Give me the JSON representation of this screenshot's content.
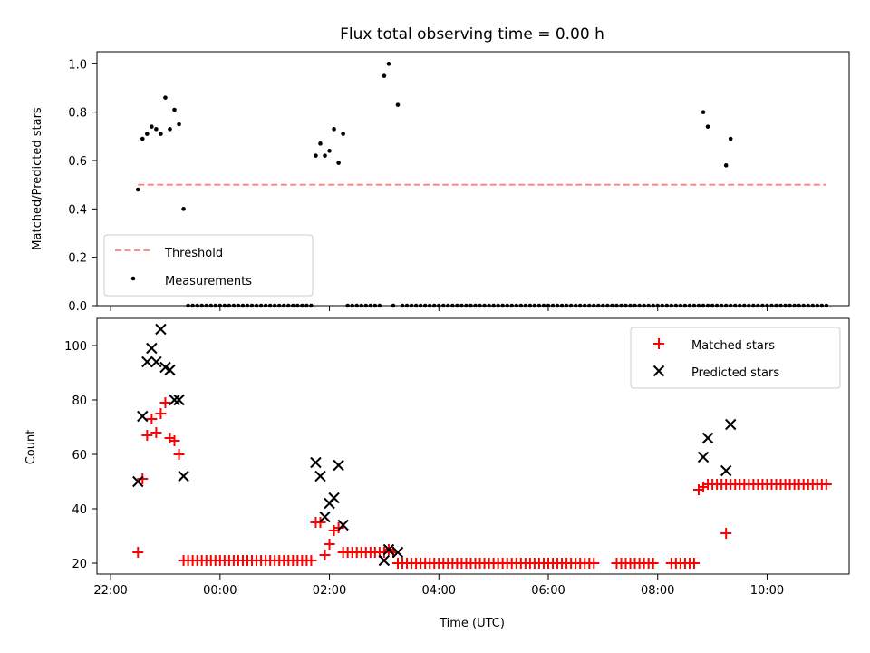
{
  "title": "Flux total observing time = 0.00 h",
  "chart_data": [
    {
      "type": "scatter",
      "panel": "top",
      "title": "Flux total observing time = 0.00 h",
      "xlabel": "",
      "ylabel": "Matched/Predicted stars",
      "xlim": [
        21.75,
        11.5
      ],
      "ylim": [
        0.0,
        1.05
      ],
      "xticks": [
        "22:00",
        "00:00",
        "02:00",
        "04:00",
        "06:00",
        "08:00",
        "10:00"
      ],
      "yticks": [
        "0.0",
        "0.2",
        "0.4",
        "0.6",
        "0.8",
        "1.0"
      ],
      "legend": {
        "position": "lower-left",
        "entries": [
          "Threshold",
          "Measurements"
        ]
      },
      "series": [
        {
          "name": "Threshold",
          "kind": "dashed-line",
          "color": "#ff7f7f",
          "x": [
            "22:30",
            "11:05"
          ],
          "y": [
            0.5,
            0.5
          ]
        },
        {
          "name": "Measurements",
          "kind": "dots",
          "color": "#000000",
          "points": [
            [
              "22:30",
              0.48
            ],
            [
              "22:35",
              0.69
            ],
            [
              "22:40",
              0.71
            ],
            [
              "22:45",
              0.74
            ],
            [
              "22:50",
              0.73
            ],
            [
              "22:55",
              0.71
            ],
            [
              "23:00",
              0.86
            ],
            [
              "23:05",
              0.73
            ],
            [
              "23:10",
              0.81
            ],
            [
              "23:15",
              0.75
            ],
            [
              "23:20",
              0.4
            ],
            [
              "01:45",
              0.62
            ],
            [
              "01:50",
              0.67
            ],
            [
              "01:55",
              0.62
            ],
            [
              "02:00",
              0.64
            ],
            [
              "02:05",
              0.73
            ],
            [
              "02:10",
              0.59
            ],
            [
              "02:15",
              0.71
            ],
            [
              "03:00",
              0.95
            ],
            [
              "03:05",
              1.0
            ],
            [
              "03:15",
              0.83
            ],
            [
              "08:50",
              0.8
            ],
            [
              "08:55",
              0.74
            ],
            [
              "09:15",
              0.58
            ],
            [
              "09:20",
              0.69
            ]
          ],
          "zero_runs": [
            [
              "23:25",
              "01:40"
            ],
            [
              "02:20",
              "02:55"
            ],
            [
              "03:10",
              "03:10"
            ],
            [
              "03:20",
              "11:05"
            ]
          ]
        }
      ]
    },
    {
      "type": "scatter",
      "panel": "bottom",
      "xlabel": "Time (UTC)",
      "ylabel": "Count",
      "xlim": [
        21.75,
        11.5
      ],
      "ylim": [
        16,
        110
      ],
      "xticks": [
        "22:00",
        "00:00",
        "02:00",
        "04:00",
        "06:00",
        "08:00",
        "10:00"
      ],
      "yticks": [
        "20",
        "40",
        "60",
        "80",
        "100"
      ],
      "legend": {
        "position": "upper-right",
        "entries": [
          "Matched stars",
          "Predicted stars"
        ]
      },
      "series": [
        {
          "name": "Matched stars",
          "marker": "+",
          "color": "#ff0000",
          "points": [
            [
              "22:30",
              24
            ],
            [
              "22:35",
              51
            ],
            [
              "22:40",
              67
            ],
            [
              "22:45",
              73
            ],
            [
              "22:50",
              68
            ],
            [
              "22:55",
              75
            ],
            [
              "23:00",
              79
            ],
            [
              "23:05",
              66
            ],
            [
              "23:10",
              65
            ],
            [
              "23:15",
              60
            ],
            [
              "01:45",
              35
            ],
            [
              "01:50",
              35
            ],
            [
              "01:55",
              23
            ],
            [
              "02:00",
              27
            ],
            [
              "02:05",
              32
            ],
            [
              "02:10",
              33
            ],
            [
              "02:15",
              24
            ],
            [
              "03:00",
              24
            ],
            [
              "03:05",
              25
            ],
            [
              "03:10",
              24
            ],
            [
              "03:15",
              20
            ],
            [
              "08:45",
              47
            ],
            [
              "08:50",
              48
            ],
            [
              "09:15",
              31
            ]
          ],
          "runs": [
            {
              "from": "23:20",
              "to": "01:40",
              "value": 21
            },
            {
              "from": "02:20",
              "to": "02:55",
              "value": 24
            },
            {
              "from": "03:20",
              "to": "06:50",
              "value": 20
            },
            {
              "from": "07:15",
              "to": "07:55",
              "value": 20
            },
            {
              "from": "08:15",
              "to": "08:40",
              "value": 20
            },
            {
              "from": "08:55",
              "to": "11:05",
              "value": 49
            }
          ]
        },
        {
          "name": "Predicted stars",
          "marker": "x",
          "color": "#000000",
          "points": [
            [
              "22:30",
              50
            ],
            [
              "22:35",
              74
            ],
            [
              "22:40",
              94
            ],
            [
              "22:45",
              99
            ],
            [
              "22:50",
              94
            ],
            [
              "22:55",
              106
            ],
            [
              "23:00",
              92
            ],
            [
              "23:05",
              91
            ],
            [
              "23:10",
              80
            ],
            [
              "23:15",
              80
            ],
            [
              "23:20",
              52
            ],
            [
              "01:45",
              57
            ],
            [
              "01:50",
              52
            ],
            [
              "01:55",
              37
            ],
            [
              "02:00",
              42
            ],
            [
              "02:05",
              44
            ],
            [
              "02:10",
              56
            ],
            [
              "02:15",
              34
            ],
            [
              "03:00",
              21
            ],
            [
              "03:05",
              25
            ],
            [
              "03:15",
              24
            ],
            [
              "08:50",
              59
            ],
            [
              "08:55",
              66
            ],
            [
              "09:15",
              54
            ],
            [
              "09:20",
              71
            ]
          ]
        }
      ]
    }
  ]
}
